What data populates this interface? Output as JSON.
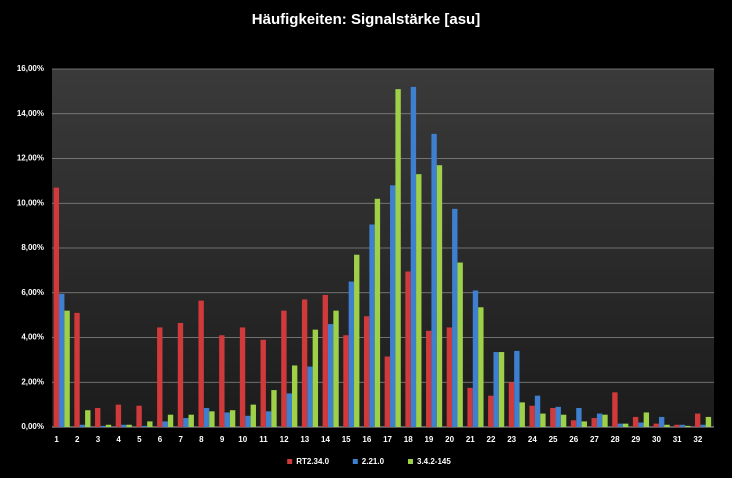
{
  "chart_data": {
    "type": "bar",
    "title": "Häufigkeiten: Signalstärke [asu]",
    "categories": [
      "1",
      "2",
      "3",
      "4",
      "5",
      "6",
      "7",
      "8",
      "9",
      "10",
      "11",
      "12",
      "13",
      "14",
      "15",
      "16",
      "17",
      "18",
      "19",
      "20",
      "21",
      "22",
      "23",
      "24",
      "25",
      "26",
      "27",
      "28",
      "29",
      "30",
      "31",
      "32"
    ],
    "series": [
      {
        "name": "RT2.34.0",
        "color": "#d03a3a",
        "values": [
          10.7,
          5.1,
          0.85,
          1.0,
          0.95,
          4.45,
          4.65,
          5.65,
          4.1,
          4.45,
          3.9,
          5.2,
          5.7,
          5.9,
          4.1,
          4.95,
          3.15,
          6.95,
          4.3,
          4.45,
          1.75,
          1.4,
          2.0,
          0.95,
          0.85,
          0.3,
          0.4,
          1.55,
          0.45,
          0.15,
          0.1,
          0.6
        ]
      },
      {
        "name": "2.21.0",
        "color": "#3f7fd0",
        "values": [
          5.95,
          0.1,
          0.05,
          0.1,
          0.05,
          0.25,
          0.4,
          0.85,
          0.65,
          0.5,
          0.7,
          1.5,
          2.7,
          4.6,
          6.5,
          9.05,
          10.8,
          15.2,
          13.1,
          9.75,
          6.1,
          3.35,
          3.4,
          1.4,
          0.9,
          0.85,
          0.6,
          0.15,
          0.2,
          0.45,
          0.1,
          0.1
        ]
      },
      {
        "name": "3.4.2-145",
        "color": "#9ed048",
        "values": [
          5.2,
          0.75,
          0.1,
          0.1,
          0.25,
          0.55,
          0.55,
          0.7,
          0.75,
          1.0,
          1.65,
          2.75,
          4.35,
          5.2,
          7.7,
          10.2,
          15.1,
          11.3,
          11.7,
          7.35,
          5.35,
          3.35,
          1.1,
          0.6,
          0.55,
          0.25,
          0.55,
          0.15,
          0.65,
          0.1,
          0.05,
          0.45
        ]
      }
    ],
    "ylim": [
      0,
      16
    ],
    "yticks": [
      {
        "value": 0,
        "label": "0,00%"
      },
      {
        "value": 2,
        "label": "2,00%"
      },
      {
        "value": 4,
        "label": "4,00%"
      },
      {
        "value": 6,
        "label": "6,00%"
      },
      {
        "value": 8,
        "label": "8,00%"
      },
      {
        "value": 10,
        "label": "10,00%"
      },
      {
        "value": 12,
        "label": "12,00%"
      },
      {
        "value": 14,
        "label": "14,00%"
      },
      {
        "value": 16,
        "label": "16,00%"
      }
    ],
    "grid": true,
    "legend": "bottom"
  }
}
